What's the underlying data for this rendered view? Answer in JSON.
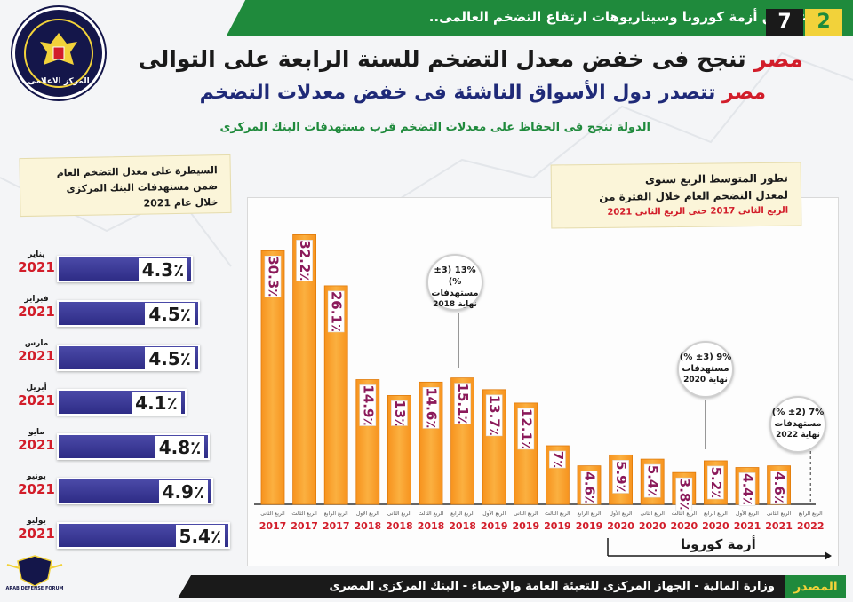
{
  "header": {
    "banner": "بالرغم من أزمة كورونا وسيناريوهات ارتفاع التضخم العالمى..",
    "page_num_a": "7",
    "page_num_b": "2",
    "title_1_highlight": "مصر",
    "title_1_rest": "تنجح فى خفض معدل التضخم للسنة الرابعة على التوالى",
    "title_2_highlight": "مصر",
    "title_2_rest": "تتصدر دول الأسواق الناشئة فى خفض معدلات التضخم",
    "subtitle": "الدولة تنجح فى الحفاظ على معدلات التضخم قرب مستهدفات البنك المركزى"
  },
  "logo": {
    "text": "المركز الاعلامى",
    "icon": "eagle-emblem-icon"
  },
  "left_panel": {
    "note_lines": [
      "السيطرة على معدل التضخم العام",
      "ضمن مستهدفات البنك المركزى",
      "خلال عام 2021"
    ],
    "value_suffix": "٪"
  },
  "right_panel": {
    "note_line_1": "تطور المتوسط الربع سنوى",
    "note_line_2": "لمعدل التضخم العام خلال الفترة من",
    "note_line_3": "الربع الثانى 2017 حتى الربع الثانى 2021"
  },
  "callouts": [
    {
      "l1": "13% (±3 %)",
      "l2": "مستهدفات",
      "l3": "نهاية 2018"
    },
    {
      "l1": "9% (±3 %)",
      "l2": "مستهدفات",
      "l3": "نهاية 2020"
    },
    {
      "l1": "7% (±2 %)",
      "l2": "مستهدفات",
      "l3": "نهاية 2022"
    }
  ],
  "corona_label": "أزمة كورونا",
  "source": {
    "tag": "المصدر",
    "text": "وزارة المالية - الجهاز المركزى للتعبئة العامة والإحصاء - البنك المركزى المصرى"
  },
  "forum_label": "ARAB DEFENSE FORUM",
  "colors": {
    "green": "#1f8a3c",
    "orange": "#f7931e",
    "purple": "#2e2c86",
    "red": "#d21d2a",
    "yellow": "#f2d23a"
  },
  "chart_data": [
    {
      "type": "bar",
      "orientation": "horizontal",
      "categories": [
        "يناير",
        "فبراير",
        "مارس",
        "أبريل",
        "مايو",
        "يونيو",
        "يوليو"
      ],
      "years": [
        "2021",
        "2021",
        "2021",
        "2021",
        "2021",
        "2021",
        "2021"
      ],
      "values": [
        4.3,
        4.5,
        4.5,
        4.1,
        4.8,
        4.9,
        5.4
      ],
      "value_suffix": "٪"
    },
    {
      "type": "bar",
      "categories": [
        "الربع الثانى",
        "الربع الثالث",
        "الربع الرابع",
        "الربع الأول",
        "الربع الثانى",
        "الربع الثالث",
        "الربع الرابع",
        "الربع الأول",
        "الربع الثانى",
        "الربع الثالث",
        "الربع الرابع",
        "الربع الأول",
        "الربع الثانى",
        "الربع الثالث",
        "الربع الرابع",
        "الربع الأول",
        "الربع الثانى",
        "الربع الرابع"
      ],
      "years": [
        "2017",
        "2017",
        "2017",
        "2018",
        "2018",
        "2018",
        "2018",
        "2019",
        "2019",
        "2019",
        "2019",
        "2020",
        "2020",
        "2020",
        "2020",
        "2021",
        "2021",
        "2022"
      ],
      "values": [
        30.3,
        32.2,
        26.1,
        14.9,
        13,
        14.6,
        15.1,
        13.7,
        12.1,
        7,
        4.6,
        5.9,
        5.4,
        3.8,
        5.2,
        4.4,
        4.6,
        null
      ],
      "value_labels": [
        "30.3",
        "32.2",
        "26.1",
        "14.9",
        "13",
        "14.6",
        "15.1",
        "13.7",
        "12.1",
        "7",
        "4.6",
        "5.9",
        "5.4",
        "3.8",
        "5.2",
        "4.4",
        "4.6",
        ""
      ],
      "value_suffix": "٪",
      "ylim": [
        0,
        35
      ]
    }
  ]
}
